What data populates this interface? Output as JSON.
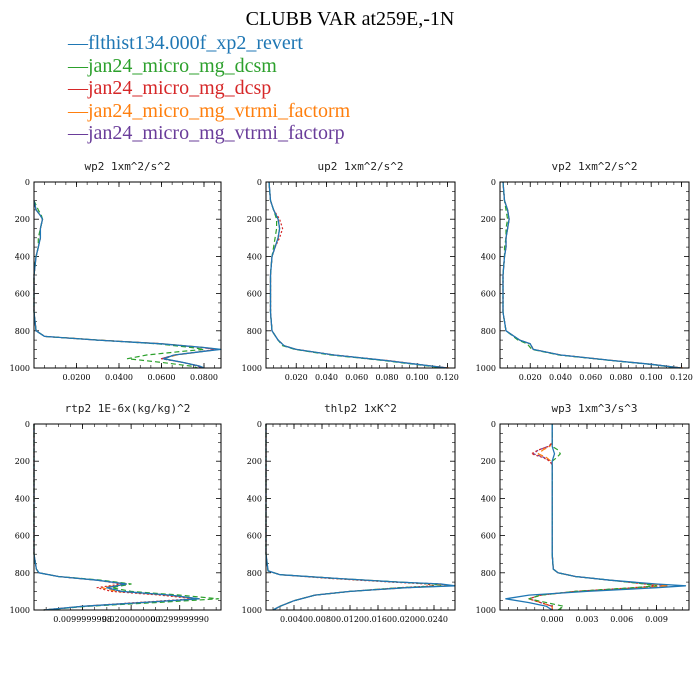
{
  "title": "CLUBB VAR at259E,-1N",
  "legend": [
    {
      "label": "flthist134.000f_xp2_revert",
      "color": "#1f77b4"
    },
    {
      "label": "jan24_micro_mg_dcsm",
      "color": "#2ca02c"
    },
    {
      "label": "jan24_micro_mg_dcsp",
      "color": "#d62728"
    },
    {
      "label": "jan24_micro_mg_vtrmi_factorm",
      "color": "#ff7f0e"
    },
    {
      "label": "jan24_micro_mg_vtrmi_factorp",
      "color": "#6a3d9a"
    }
  ],
  "chart_data": [
    {
      "type": "line",
      "title": "wp2  1xm^2/s^2",
      "xlim": [
        0,
        0.088
      ],
      "ylim": [
        1000,
        0
      ],
      "xticks": [
        "0.0200",
        "0.0400",
        "0.0600",
        "0.0800"
      ],
      "xtick_values": [
        0.02,
        0.04,
        0.06,
        0.08
      ],
      "yticks": [
        "0",
        "200",
        "400",
        "600",
        "800",
        "1000"
      ],
      "y": [
        100,
        150,
        180,
        200,
        250,
        300,
        350,
        400,
        500,
        600,
        700,
        800,
        830,
        850,
        870,
        890,
        900,
        910,
        930,
        950,
        970,
        990,
        1000
      ],
      "series": [
        {
          "name": "flthist134.000f_xp2_revert",
          "values": [
            0,
            0.001,
            0.003,
            0.004,
            0.003,
            0.003,
            0.002,
            0.001,
            0,
            0,
            0,
            0.001,
            0.005,
            0.03,
            0.06,
            0.08,
            0.088,
            0.08,
            0.066,
            0.061,
            0.07,
            0.078,
            0.08
          ]
        },
        {
          "name": "jan24_micro_mg_dcsm",
          "values": [
            0,
            0.002,
            0.0035,
            0.004,
            0.003,
            0.002,
            0.002,
            0.001,
            0,
            0,
            0,
            0.001,
            0.005,
            0.03,
            0.058,
            0.074,
            0.08,
            0.07,
            0.053,
            0.044,
            0.06,
            0.074,
            0.077
          ]
        },
        {
          "name": "jan24_micro_mg_dcsp",
          "values": [
            0,
            0.001,
            0.003,
            0.004,
            0.003,
            0.003,
            0.002,
            0.001,
            0,
            0,
            0,
            0.001,
            0.005,
            0.03,
            0.06,
            0.079,
            0.086,
            0.079,
            0.066,
            0.06,
            0.07,
            0.078,
            0.079
          ]
        },
        {
          "name": "jan24_micro_mg_vtrmi_factorm",
          "values": [
            0,
            0.001,
            0.003,
            0.004,
            0.003,
            0.003,
            0.002,
            0.001,
            0,
            0,
            0,
            0.001,
            0.005,
            0.031,
            0.061,
            0.08,
            0.087,
            0.08,
            0.067,
            0.061,
            0.07,
            0.078,
            0.08
          ]
        },
        {
          "name": "jan24_micro_mg_vtrmi_factorp",
          "values": [
            0,
            0.001,
            0.003,
            0.004,
            0.003,
            0.003,
            0.002,
            0.001,
            0,
            0,
            0,
            0.001,
            0.005,
            0.03,
            0.06,
            0.079,
            0.086,
            0.08,
            0.066,
            0.06,
            0.07,
            0.077,
            0.079
          ]
        }
      ]
    },
    {
      "type": "line",
      "title": "up2  1xm^2/s^2",
      "xlim": [
        0,
        0.125
      ],
      "ylim": [
        1000,
        0
      ],
      "xticks": [
        "0.020",
        "0.040",
        "0.060",
        "0.080",
        "0.100",
        "0.120"
      ],
      "xtick_values": [
        0.02,
        0.04,
        0.06,
        0.08,
        0.1,
        0.12
      ],
      "yticks": [
        "0",
        "200",
        "400",
        "600",
        "800",
        "1000"
      ],
      "y": [
        0,
        100,
        150,
        200,
        250,
        300,
        350,
        400,
        500,
        600,
        700,
        800,
        850,
        880,
        900,
        930,
        960,
        980,
        1000
      ],
      "series": [
        {
          "name": "flthist134.000f_xp2_revert",
          "values": [
            0.002,
            0.003,
            0.005,
            0.008,
            0.009,
            0.008,
            0.006,
            0.004,
            0.003,
            0.003,
            0.003,
            0.004,
            0.008,
            0.012,
            0.02,
            0.045,
            0.08,
            0.1,
            0.12
          ]
        },
        {
          "name": "jan24_micro_mg_dcsm",
          "values": [
            0.002,
            0.003,
            0.005,
            0.007,
            0.007,
            0.006,
            0.005,
            0.004,
            0.003,
            0.003,
            0.003,
            0.004,
            0.008,
            0.011,
            0.019,
            0.043,
            0.078,
            0.098,
            0.118
          ]
        },
        {
          "name": "jan24_micro_mg_dcsp",
          "values": [
            0.002,
            0.003,
            0.005,
            0.009,
            0.011,
            0.009,
            0.006,
            0.004,
            0.003,
            0.003,
            0.003,
            0.004,
            0.008,
            0.012,
            0.02,
            0.045,
            0.081,
            0.1,
            0.12
          ]
        },
        {
          "name": "jan24_micro_mg_vtrmi_factorm",
          "values": [
            0.002,
            0.003,
            0.005,
            0.008,
            0.009,
            0.008,
            0.006,
            0.004,
            0.003,
            0.003,
            0.003,
            0.004,
            0.008,
            0.012,
            0.02,
            0.045,
            0.08,
            0.1,
            0.121
          ]
        },
        {
          "name": "jan24_micro_mg_vtrmi_factorp",
          "values": [
            0.002,
            0.003,
            0.005,
            0.008,
            0.009,
            0.008,
            0.006,
            0.004,
            0.003,
            0.003,
            0.003,
            0.004,
            0.008,
            0.012,
            0.02,
            0.045,
            0.08,
            0.1,
            0.12
          ]
        }
      ]
    },
    {
      "type": "line",
      "title": "vp2  1xm^2/s^2",
      "xlim": [
        0,
        0.125
      ],
      "ylim": [
        1000,
        0
      ],
      "xticks": [
        "0.020",
        "0.040",
        "0.060",
        "0.080",
        "0.100",
        "0.120"
      ],
      "xtick_values": [
        0.02,
        0.04,
        0.06,
        0.08,
        0.1,
        0.12
      ],
      "yticks": [
        "0",
        "200",
        "400",
        "600",
        "800",
        "1000"
      ],
      "y": [
        0,
        100,
        150,
        200,
        250,
        300,
        350,
        400,
        500,
        600,
        700,
        800,
        850,
        870,
        900,
        930,
        960,
        980,
        1000
      ],
      "series": [
        {
          "name": "flthist134.000f_xp2_revert",
          "values": [
            0.002,
            0.003,
            0.005,
            0.006,
            0.005,
            0.004,
            0.004,
            0.003,
            0.002,
            0.002,
            0.002,
            0.004,
            0.013,
            0.02,
            0.022,
            0.04,
            0.075,
            0.1,
            0.12
          ]
        },
        {
          "name": "jan24_micro_mg_dcsm",
          "values": [
            0.002,
            0.003,
            0.004,
            0.005,
            0.004,
            0.004,
            0.003,
            0.003,
            0.002,
            0.002,
            0.002,
            0.004,
            0.012,
            0.018,
            0.021,
            0.039,
            0.074,
            0.099,
            0.119
          ]
        },
        {
          "name": "jan24_micro_mg_dcsp",
          "values": [
            0.002,
            0.003,
            0.005,
            0.006,
            0.005,
            0.004,
            0.004,
            0.003,
            0.002,
            0.002,
            0.002,
            0.004,
            0.013,
            0.02,
            0.022,
            0.04,
            0.075,
            0.1,
            0.12
          ]
        },
        {
          "name": "jan24_micro_mg_vtrmi_factorm",
          "values": [
            0.002,
            0.003,
            0.005,
            0.006,
            0.005,
            0.004,
            0.004,
            0.003,
            0.002,
            0.002,
            0.002,
            0.004,
            0.013,
            0.02,
            0.022,
            0.04,
            0.075,
            0.1,
            0.121
          ]
        },
        {
          "name": "jan24_micro_mg_vtrmi_factorp",
          "values": [
            0.002,
            0.003,
            0.005,
            0.006,
            0.005,
            0.004,
            0.004,
            0.003,
            0.002,
            0.002,
            0.002,
            0.004,
            0.013,
            0.02,
            0.022,
            0.04,
            0.075,
            0.1,
            0.12
          ]
        }
      ]
    },
    {
      "type": "line",
      "title": "rtp2  1E-6x(kg/kg)^2",
      "xlim": [
        0,
        0.0385
      ],
      "ylim": [
        1000,
        0
      ],
      "xticks": [
        "0.0099999998",
        "0.0200000000",
        "0.0299999990"
      ],
      "xtick_values": [
        0.01,
        0.02,
        0.03
      ],
      "yticks": [
        "0",
        "200",
        "400",
        "600",
        "800",
        "1000"
      ],
      "y": [
        0,
        200,
        400,
        600,
        700,
        780,
        800,
        820,
        840,
        860,
        880,
        900,
        920,
        940,
        960,
        980,
        1000
      ],
      "series": [
        {
          "name": "flthist134.000f_xp2_revert",
          "values": [
            0,
            0,
            0,
            0,
            0,
            0.0005,
            0.001,
            0.005,
            0.013,
            0.019,
            0.015,
            0.018,
            0.028,
            0.034,
            0.022,
            0.01,
            0.002
          ]
        },
        {
          "name": "jan24_micro_mg_dcsm",
          "values": [
            0,
            0,
            0,
            0,
            0,
            0.0005,
            0.001,
            0.005,
            0.014,
            0.02,
            0.016,
            0.02,
            0.03,
            0.038,
            0.025,
            0.011,
            0.002
          ]
        },
        {
          "name": "jan24_micro_mg_dcsp",
          "values": [
            0,
            0,
            0,
            0,
            0,
            0.0005,
            0.001,
            0.005,
            0.013,
            0.018,
            0.013,
            0.016,
            0.026,
            0.033,
            0.021,
            0.01,
            0.002
          ]
        },
        {
          "name": "jan24_micro_mg_vtrmi_factorm",
          "values": [
            0,
            0,
            0,
            0,
            0,
            0.0005,
            0.001,
            0.005,
            0.013,
            0.019,
            0.014,
            0.017,
            0.027,
            0.034,
            0.022,
            0.01,
            0.002
          ]
        },
        {
          "name": "jan24_micro_mg_vtrmi_factorp",
          "values": [
            0,
            0,
            0,
            0,
            0,
            0.0005,
            0.001,
            0.005,
            0.013,
            0.019,
            0.015,
            0.018,
            0.028,
            0.034,
            0.022,
            0.01,
            0.002
          ]
        }
      ]
    },
    {
      "type": "line",
      "title": "thlp2  1xK^2",
      "xlim": [
        0,
        0.027
      ],
      "ylim": [
        1000,
        0
      ],
      "xticks": [
        "0.0040",
        "0.0080",
        "0.0120",
        "0.0160",
        "0.0200",
        "0.0240"
      ],
      "xtick_values": [
        0.004,
        0.008,
        0.012,
        0.016,
        0.02,
        0.024
      ],
      "yticks": [
        "0",
        "200",
        "400",
        "600",
        "800",
        "1000"
      ],
      "y": [
        0,
        200,
        400,
        600,
        700,
        790,
        810,
        830,
        850,
        860,
        870,
        880,
        900,
        920,
        950,
        980,
        1000
      ],
      "series": [
        {
          "name": "flthist134.000f_xp2_revert",
          "values": [
            0,
            0,
            0,
            0,
            0,
            0.0003,
            0.002,
            0.01,
            0.019,
            0.025,
            0.027,
            0.02,
            0.012,
            0.007,
            0.004,
            0.002,
            0.001
          ]
        },
        {
          "name": "jan24_micro_mg_dcsm",
          "values": [
            0,
            0,
            0,
            0,
            0,
            0.0003,
            0.002,
            0.01,
            0.019,
            0.024,
            0.025,
            0.019,
            0.012,
            0.007,
            0.004,
            0.002,
            0.001
          ]
        },
        {
          "name": "jan24_micro_mg_dcsp",
          "values": [
            0,
            0,
            0,
            0,
            0,
            0.0003,
            0.002,
            0.009,
            0.018,
            0.023,
            0.024,
            0.019,
            0.012,
            0.007,
            0.004,
            0.002,
            0.001
          ]
        },
        {
          "name": "jan24_micro_mg_vtrmi_factorm",
          "values": [
            0,
            0,
            0,
            0,
            0,
            0.0003,
            0.002,
            0.01,
            0.019,
            0.024,
            0.026,
            0.02,
            0.012,
            0.007,
            0.004,
            0.002,
            0.001
          ]
        },
        {
          "name": "jan24_micro_mg_vtrmi_factorp",
          "values": [
            0,
            0,
            0,
            0,
            0,
            0.0003,
            0.002,
            0.01,
            0.019,
            0.025,
            0.026,
            0.02,
            0.012,
            0.007,
            0.004,
            0.002,
            0.001
          ]
        }
      ]
    },
    {
      "type": "line",
      "title": "wp3  1xm^3/s^3",
      "xlim": [
        -0.0045,
        0.0118
      ],
      "ylim": [
        1000,
        0
      ],
      "xticks": [
        "0.000",
        "0.003",
        "0.006",
        "0.009"
      ],
      "xtick_values": [
        0,
        0.003,
        0.006,
        0.009
      ],
      "yticks": [
        "0",
        "200",
        "400",
        "600",
        "800",
        "1000"
      ],
      "y": [
        0,
        100,
        120,
        140,
        160,
        180,
        200,
        220,
        300,
        500,
        700,
        780,
        800,
        820,
        840,
        860,
        870,
        880,
        900,
        920,
        940,
        960,
        980,
        1000
      ],
      "series": [
        {
          "name": "flthist134.000f_xp2_revert",
          "values": [
            0,
            0,
            0,
            0.0001,
            0.0002,
            0.0001,
            0,
            0,
            0,
            0,
            0,
            0.0001,
            0.0005,
            0.002,
            0.005,
            0.009,
            0.0115,
            0.009,
            0.003,
            -0.002,
            -0.004,
            -0.002,
            -0.0005,
            0
          ]
        },
        {
          "name": "jan24_micro_mg_dcsm",
          "values": [
            0,
            0,
            0,
            0.0005,
            0.0007,
            0.0004,
            0,
            0,
            0,
            0,
            0,
            0.0001,
            0.0005,
            0.002,
            0.005,
            0.008,
            0.009,
            0.007,
            0.002,
            -0.001,
            -0.002,
            -0.0005,
            0.001,
            0.0005
          ]
        },
        {
          "name": "jan24_micro_mg_dcsp",
          "values": [
            0,
            0,
            -0.0003,
            -0.0012,
            -0.0018,
            -0.0008,
            -0.0002,
            0,
            0,
            0,
            0,
            0.0001,
            0.0005,
            0.002,
            0.005,
            0.008,
            0.009,
            0.007,
            0.002,
            -0.001,
            -0.002,
            -0.001,
            0,
            0
          ]
        },
        {
          "name": "jan24_micro_mg_vtrmi_factorm",
          "values": [
            0,
            0,
            -0.0002,
            -0.0008,
            -0.0012,
            -0.0005,
            -0.0001,
            0,
            0,
            0,
            0,
            0.0001,
            0.0005,
            0.002,
            0.005,
            0.0085,
            0.01,
            0.008,
            0.002,
            -0.001,
            -0.002,
            -0.001,
            0,
            0
          ]
        },
        {
          "name": "jan24_micro_mg_vtrmi_factorp",
          "values": [
            0,
            0,
            -0.0003,
            -0.0012,
            -0.0016,
            -0.0007,
            -0.0002,
            0,
            0,
            0,
            0,
            0.0001,
            0.0005,
            0.002,
            0.005,
            0.0085,
            0.01,
            0.008,
            0.002,
            -0.001,
            -0.002,
            -0.001,
            0,
            0
          ]
        }
      ]
    }
  ]
}
